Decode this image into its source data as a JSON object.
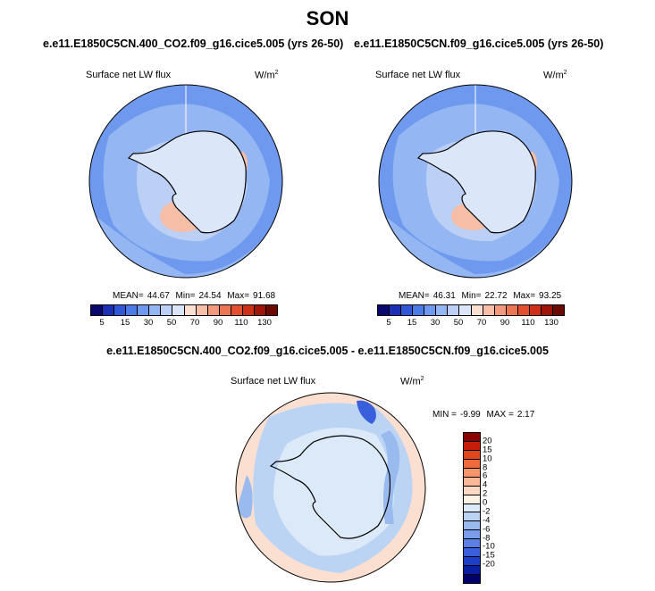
{
  "title": "SON",
  "panels": [
    {
      "case": "e.e11.E1850C5CN.400_CO2.f09_g16.cice5.005 (yrs 26-50)",
      "variable": "Surface net LW flux",
      "units_base": "W/m",
      "units_exp": "2",
      "stats": {
        "mean_label": "MEAN=",
        "mean": "44.67",
        "min_label": "Min=",
        "min": "24.54",
        "max_label": "Max=",
        "max": "91.68"
      }
    },
    {
      "case": "e.e11.E1850C5CN.f09_g16.cice5.005 (yrs 26-50)",
      "variable": "Surface net LW flux",
      "units_base": "W/m",
      "units_exp": "2",
      "stats": {
        "mean_label": "MEAN=",
        "mean": "46.31",
        "min_label": "Min=",
        "min": "22.72",
        "max_label": "Max=",
        "max": "93.25"
      }
    }
  ],
  "diff_panel": {
    "title": "e.e11.E1850C5CN.400_CO2.f09_g16.cice5.005 - e.e11.E1850C5CN.f09_g16.cice5.005",
    "variable": "Surface net LW flux",
    "units_base": "W/m",
    "units_exp": "2",
    "stats": {
      "min_label": "MIN =",
      "min": "-9.99",
      "max_label": "MAX =",
      "max": "2.17"
    }
  },
  "colorbar_abs": {
    "colors": [
      "#08086e",
      "#1a2fb4",
      "#2f57d8",
      "#4a7be6",
      "#6f99ee",
      "#94b6f2",
      "#bcd0f5",
      "#dbe6f8",
      "#fbe0d2",
      "#f7bea7",
      "#f29a7d",
      "#ec7553",
      "#e3502f",
      "#cf2f16",
      "#9e1508",
      "#6b0a02"
    ],
    "ticks": [
      "5",
      "15",
      "30",
      "50",
      "70",
      "90",
      "110",
      "130"
    ]
  },
  "colorbar_diff": {
    "colors": [
      "#8b0000",
      "#c41e0a",
      "#e2461e",
      "#ef6b3e",
      "#f6956c",
      "#f9b897",
      "#fbd7c2",
      "#fdf1e6",
      "#dce9f8",
      "#bcd4f4",
      "#99baef",
      "#7a9eeb",
      "#5a80e6",
      "#3a5fdc",
      "#1d3ec9",
      "#0a1ea2",
      "#00006e"
    ],
    "ticks": [
      "20",
      "15",
      "10",
      "8",
      "6",
      "4",
      "2",
      "0",
      "-2",
      "-4",
      "-6",
      "-8",
      "-10",
      "-15",
      "-20"
    ]
  }
}
